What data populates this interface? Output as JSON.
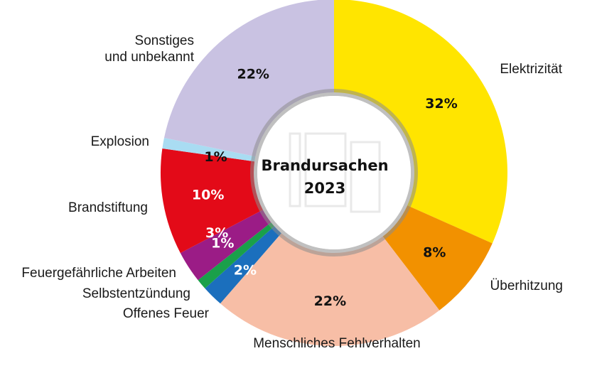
{
  "chart_data": {
    "type": "pie",
    "title": "Brandursachen",
    "subtitle": "2023",
    "slices": [
      {
        "label": "Elektrizität",
        "value": 32,
        "value_label": "32%",
        "color": "#ffe500"
      },
      {
        "label": "Überhitzung",
        "value": 8,
        "value_label": "8%",
        "color": "#f29100"
      },
      {
        "label": "Menschliches Fehlverhalten",
        "value": 22,
        "value_label": "22%",
        "color": "#f7bea6"
      },
      {
        "label": "Offenes Feuer",
        "value": 2,
        "value_label": "2%",
        "color": "#1b6fbd"
      },
      {
        "label": "Selbstentzündung",
        "value": 1,
        "value_label": "1%",
        "color": "#1aa04a"
      },
      {
        "label": "Feuergefährliche Arbeiten",
        "value": 3,
        "value_label": "3%",
        "color": "#9b1c86"
      },
      {
        "label": "Brandstiftung",
        "value": 10,
        "value_label": "10%",
        "color": "#e30a18"
      },
      {
        "label": "Explosion",
        "value": 1,
        "value_label": "1%",
        "color": "#a9dcf2"
      },
      {
        "label": "Sonstiges\nund unbekannt",
        "value": 22,
        "value_label": "22%",
        "color": "#c9c2e2"
      }
    ]
  }
}
